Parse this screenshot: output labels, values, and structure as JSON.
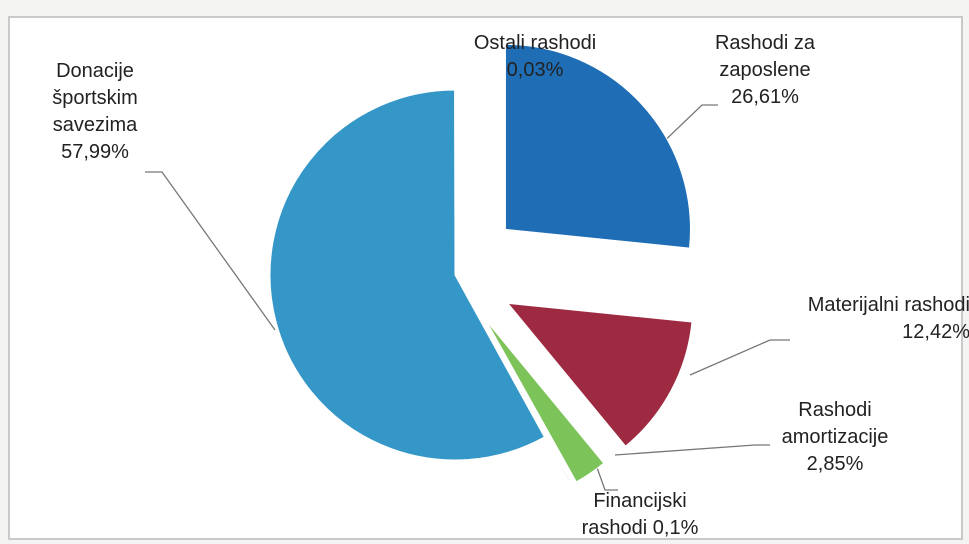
{
  "chart_data": {
    "type": "pie",
    "categories": [
      "Rashodi za zaposlene",
      "Materijalni rashodi",
      "Rashodi amortizacije",
      "Financijski rashodi",
      "Donacije športskim savezima",
      "Ostali rashodi"
    ],
    "values": [
      26.61,
      12.42,
      2.85,
      0.1,
      57.99,
      0.03
    ],
    "value_labels": [
      "26,61%",
      "12,42%",
      "2,85%",
      "0,1%",
      "57,99%",
      "0,03%"
    ],
    "colors": [
      "#1f6db5",
      "#9e2a42",
      "#7cc35a",
      "#a9b4c8",
      "#3597c8",
      "#6a8fc0"
    ]
  }
}
